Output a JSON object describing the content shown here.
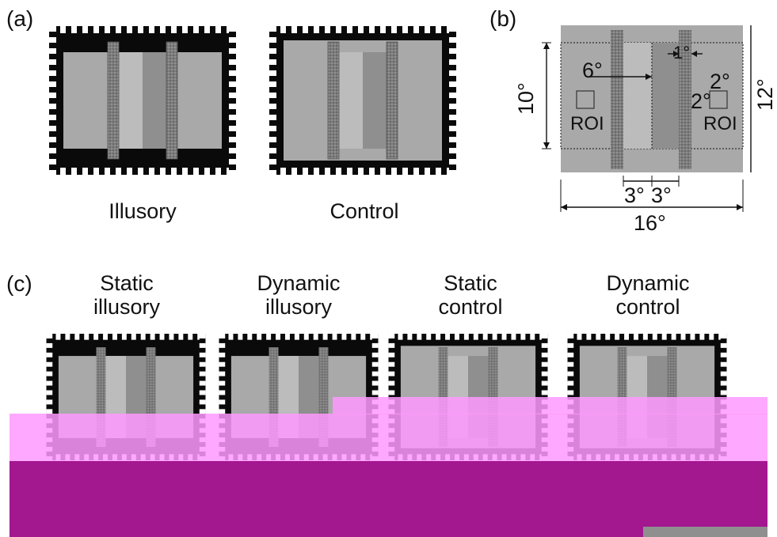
{
  "panels": {
    "a": {
      "letter": "(a)",
      "captions": [
        "Illusory",
        "Control"
      ]
    },
    "b": {
      "letter": "(b)",
      "dims": {
        "height": "10°",
        "width": "16°",
        "bar_width": "1°",
        "offset_left": "6°",
        "roi_size_w": "2°",
        "roi_size_h": "2°",
        "spacing_left": "3°",
        "spacing_right": "3°",
        "outer_height": "12°"
      },
      "roi_label": "ROI"
    },
    "c": {
      "letter": "(c)",
      "conditions": [
        {
          "line1": "Static",
          "line2": "illusory"
        },
        {
          "line1": "Dynamic",
          "line2": "illusory"
        },
        {
          "line1": "Static",
          "line2": "control"
        },
        {
          "line1": "Dynamic",
          "line2": "control"
        }
      ]
    }
  },
  "colors": {
    "frame": "#0a0a0a",
    "surround_gray": "#a9a9a9",
    "light_gray": "#bcbcbc",
    "dark_gray": "#8f8f8f",
    "bar_gray": "#7a7a7a",
    "corruption_pink": "#ff99ff",
    "corruption_magenta": "#a3178f"
  }
}
